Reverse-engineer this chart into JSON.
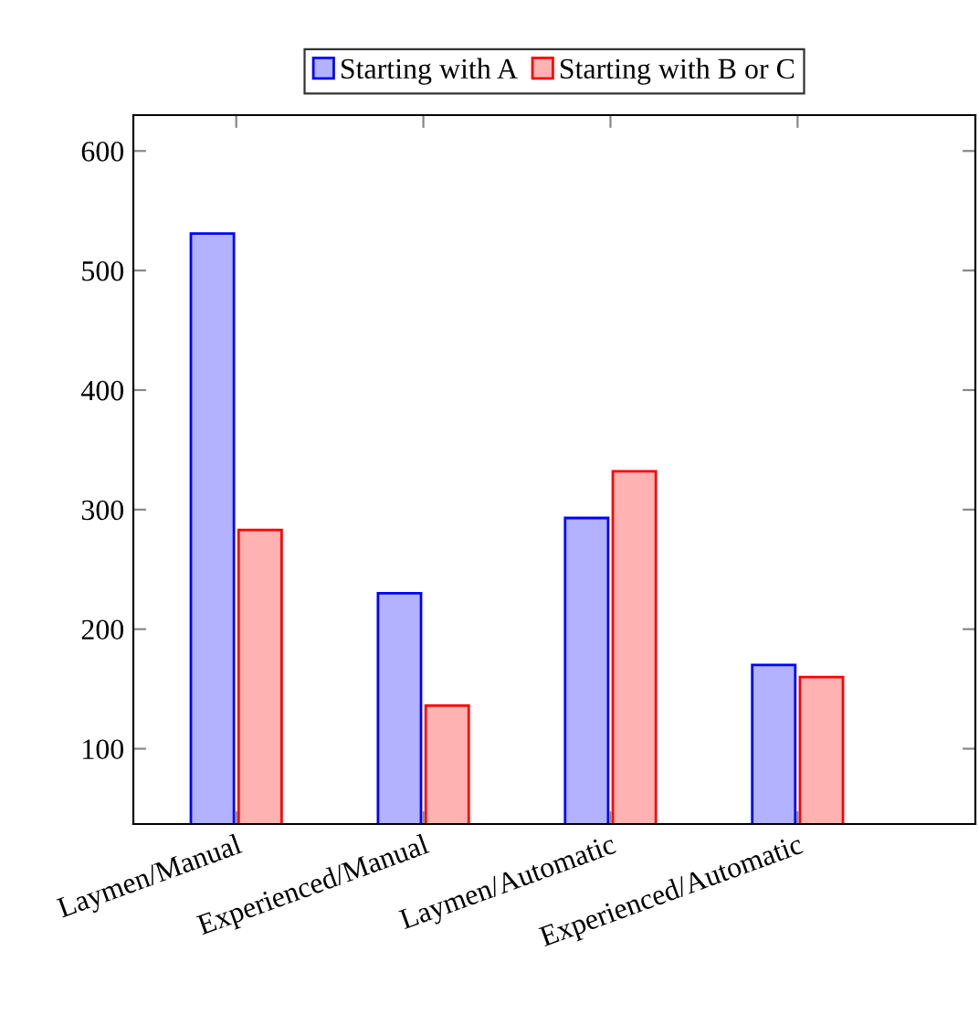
{
  "chart_data": {
    "type": "bar",
    "categories": [
      "Laymen/Manual",
      "Experienced/Manual",
      "Laymen/Automatic",
      "Experienced/Automatic"
    ],
    "series": [
      {
        "name": "Starting with A",
        "color": "#0000ff",
        "values": [
          531,
          230,
          293,
          170
        ]
      },
      {
        "name": "Starting with B or C",
        "color": "#ff0000",
        "values": [
          283,
          136,
          332,
          160
        ]
      }
    ],
    "ylim": [
      37,
      630
    ],
    "yticks": [
      100,
      200,
      300,
      400,
      500,
      600
    ],
    "grid": false,
    "legend": "top"
  }
}
